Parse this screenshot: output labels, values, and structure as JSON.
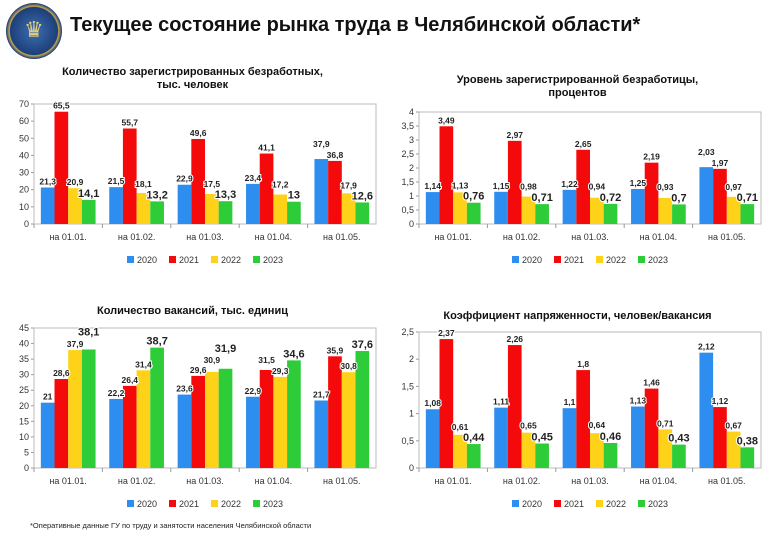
{
  "header": {
    "title": "Текущее состояние рынка труда в Челябинской области*",
    "logo": "emblem"
  },
  "footer": "*Оперативные данные ГУ по труду и занятости населения Челябинской области",
  "colors": {
    "2020": "#2e8ef0",
    "2021": "#f40a0a",
    "2022": "#ffd21a",
    "2023": "#2fcc3a"
  },
  "chart_data": [
    {
      "type": "bar",
      "title": "Количество зарегистрированных безработных, тыс. человек",
      "categories": [
        "на 01.01.",
        "на 01.02.",
        "на 01.03.",
        "на 01.04.",
        "на 01.05."
      ],
      "ylim": [
        0,
        70
      ],
      "ystep": 10,
      "decimals": 0,
      "series": [
        {
          "name": "2020",
          "values": [
            21.3,
            21.5,
            22.9,
            23.4,
            37.9
          ]
        },
        {
          "name": "2021",
          "values": [
            65.5,
            55.7,
            49.6,
            41.1,
            36.8
          ]
        },
        {
          "name": "2022",
          "values": [
            20.9,
            18.1,
            17.5,
            17.2,
            17.9
          ]
        },
        {
          "name": "2023",
          "values": [
            14.1,
            13.2,
            13.3,
            13,
            12.6
          ]
        }
      ],
      "legend": "bottom"
    },
    {
      "type": "bar",
      "title": "Уровень зарегистрированной безработицы, процентов",
      "categories": [
        "на 01.01.",
        "на 01.02.",
        "на 01.03.",
        "на 01.04.",
        "на 01.05."
      ],
      "ylim": [
        0,
        4
      ],
      "ystep": 0.5,
      "decimals": 1,
      "series": [
        {
          "name": "2020",
          "values": [
            1.14,
            1.15,
            1.22,
            1.25,
            2.03
          ]
        },
        {
          "name": "2021",
          "values": [
            3.49,
            2.97,
            2.65,
            2.19,
            1.97
          ]
        },
        {
          "name": "2022",
          "values": [
            1.13,
            0.98,
            0.94,
            0.93,
            0.97
          ]
        },
        {
          "name": "2023",
          "values": [
            0.76,
            0.71,
            0.72,
            0.7,
            0.71
          ]
        }
      ],
      "legend": "bottom"
    },
    {
      "type": "bar",
      "title": "Количество вакансий, тыс. единиц",
      "categories": [
        "на 01.01.",
        "на 01.02.",
        "на 01.03.",
        "на 01.04.",
        "на 01.05."
      ],
      "ylim": [
        0,
        45
      ],
      "ystep": 5,
      "decimals": 0,
      "series": [
        {
          "name": "2020",
          "values": [
            21,
            22.2,
            23.6,
            22.9,
            21.7
          ]
        },
        {
          "name": "2021",
          "values": [
            28.6,
            26.4,
            29.6,
            31.5,
            35.9
          ]
        },
        {
          "name": "2022",
          "values": [
            37.9,
            31.4,
            30.9,
            29.3,
            30.8
          ]
        },
        {
          "name": "2023",
          "values": [
            38.1,
            38.7,
            31.9,
            34.6,
            37.6
          ]
        }
      ],
      "legend": "bottom"
    },
    {
      "type": "bar",
      "title": "Коэффициент напряженности, человек/вакансия",
      "categories": [
        "на 01.01.",
        "на 01.02.",
        "на 01.03.",
        "на 01.04.",
        "на 01.05."
      ],
      "ylim": [
        0,
        2.5
      ],
      "ystep": 0.5,
      "decimals": 1,
      "series": [
        {
          "name": "2020",
          "values": [
            1.08,
            1.11,
            1.1,
            1.13,
            2.12
          ]
        },
        {
          "name": "2021",
          "values": [
            2.37,
            2.26,
            1.8,
            1.46,
            1.12
          ]
        },
        {
          "name": "2022",
          "values": [
            0.61,
            0.65,
            0.64,
            0.71,
            0.67
          ]
        },
        {
          "name": "2023",
          "values": [
            0.44,
            0.45,
            0.46,
            0.43,
            0.38
          ]
        }
      ],
      "legend": "bottom"
    }
  ]
}
